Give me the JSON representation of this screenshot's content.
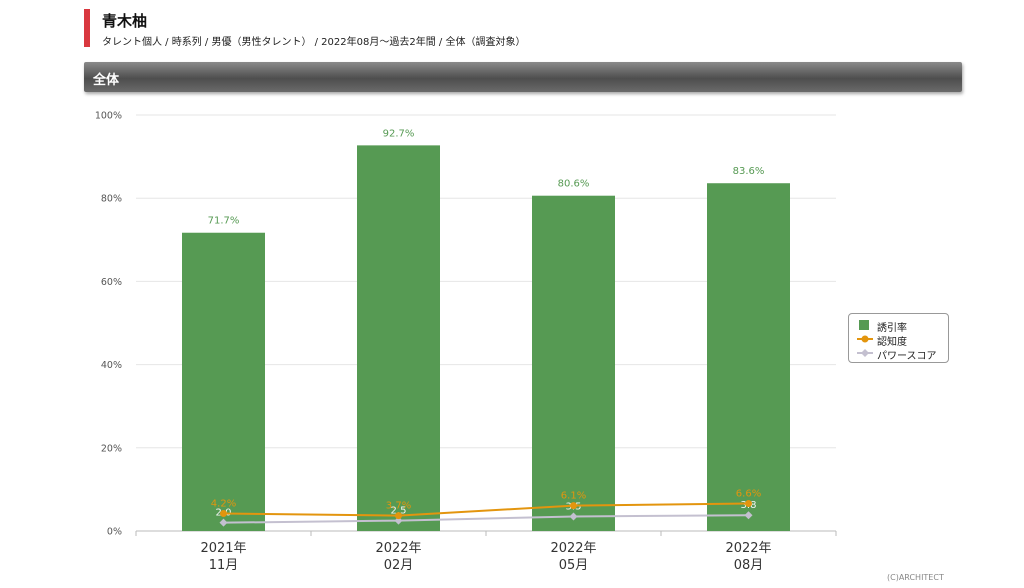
{
  "header": {
    "title": "青木柚",
    "subtitle": "タレント個人 / 時系列 / 男優（男性タレント） / 2022年08月〜過去2年間 / 全体（調査対象）",
    "section_label": "全体"
  },
  "colors": {
    "bar": "#569a53",
    "recognition": "#e3950e",
    "power": "#c4c0d0",
    "accent": "#d9383f"
  },
  "chart_data": {
    "type": "bar",
    "categories": [
      [
        "2021年",
        "11月"
      ],
      [
        "2022年",
        "02月"
      ],
      [
        "2022年",
        "05月"
      ],
      [
        "2022年",
        "08月"
      ]
    ],
    "ylim": [
      0,
      100
    ],
    "yticks": [
      "0%",
      "20%",
      "40%",
      "60%",
      "80%",
      "100%"
    ],
    "grid": true,
    "legend_position": "right",
    "series": [
      {
        "name": "誘引率",
        "type": "bar",
        "values": [
          71.7,
          92.7,
          80.6,
          83.6
        ],
        "labels": [
          "71.7%",
          "92.7%",
          "80.6%",
          "83.6%"
        ]
      },
      {
        "name": "認知度",
        "type": "line",
        "values": [
          4.2,
          3.7,
          6.1,
          6.6
        ],
        "labels": [
          "4.2%",
          "3.7%",
          "6.1%",
          "6.6%"
        ]
      },
      {
        "name": "パワースコア",
        "type": "line",
        "values": [
          2.0,
          2.5,
          3.5,
          3.8
        ],
        "labels": [
          "2.0",
          "2.5",
          "3.5",
          "3.8"
        ]
      }
    ]
  },
  "footer": {
    "copyright": "(C)ARCHITECT"
  }
}
